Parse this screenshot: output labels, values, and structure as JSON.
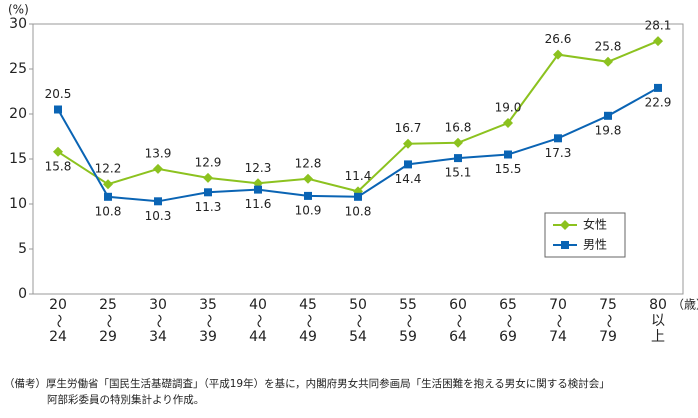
{
  "chart_data": {
    "type": "line",
    "y_unit": "(%)",
    "x_unit": "（歳）",
    "categories": [
      [
        "20",
        "～",
        "24"
      ],
      [
        "25",
        "～",
        "29"
      ],
      [
        "30",
        "～",
        "34"
      ],
      [
        "35",
        "～",
        "39"
      ],
      [
        "40",
        "～",
        "44"
      ],
      [
        "45",
        "～",
        "49"
      ],
      [
        "50",
        "～",
        "54"
      ],
      [
        "55",
        "～",
        "59"
      ],
      [
        "60",
        "～",
        "64"
      ],
      [
        "65",
        "～",
        "69"
      ],
      [
        "70",
        "～",
        "74"
      ],
      [
        "75",
        "～",
        "79"
      ],
      [
        "80",
        "以",
        "上"
      ]
    ],
    "series": [
      {
        "name": "女性",
        "color": "#8cc21f",
        "marker": "diamond",
        "values": [
          15.8,
          12.2,
          13.9,
          12.9,
          12.3,
          12.8,
          11.4,
          16.7,
          16.8,
          19.0,
          26.6,
          25.8,
          28.1
        ],
        "value_labels": [
          "15.8",
          "12.2",
          "13.9",
          "12.9",
          "12.3",
          "12.8",
          "11.4",
          "16.7",
          "16.8",
          "19.0",
          "26.6",
          "25.8",
          "28.1"
        ]
      },
      {
        "name": "男性",
        "color": "#0a64b4",
        "marker": "square",
        "values": [
          20.5,
          10.8,
          10.3,
          11.3,
          11.6,
          10.9,
          10.8,
          14.4,
          15.1,
          15.5,
          17.3,
          19.8,
          22.9
        ],
        "value_labels": [
          "20.5",
          "10.8",
          "10.3",
          "11.3",
          "11.6",
          "10.9",
          "10.8",
          "14.4",
          "15.1",
          "15.5",
          "17.3",
          "19.8",
          "22.9"
        ]
      }
    ],
    "ylim": [
      0,
      30
    ],
    "yticks": [
      0,
      5,
      10,
      15,
      20,
      25,
      30
    ],
    "grid": false,
    "notes": [
      "（備考）厚生労働省「国民生活基礎調査」（平成19年）を基に，内閣府男女共同参画局「生活困難を抱える男女に関する検討会」",
      "阿部彩委員の特別集計より作成。"
    ]
  }
}
